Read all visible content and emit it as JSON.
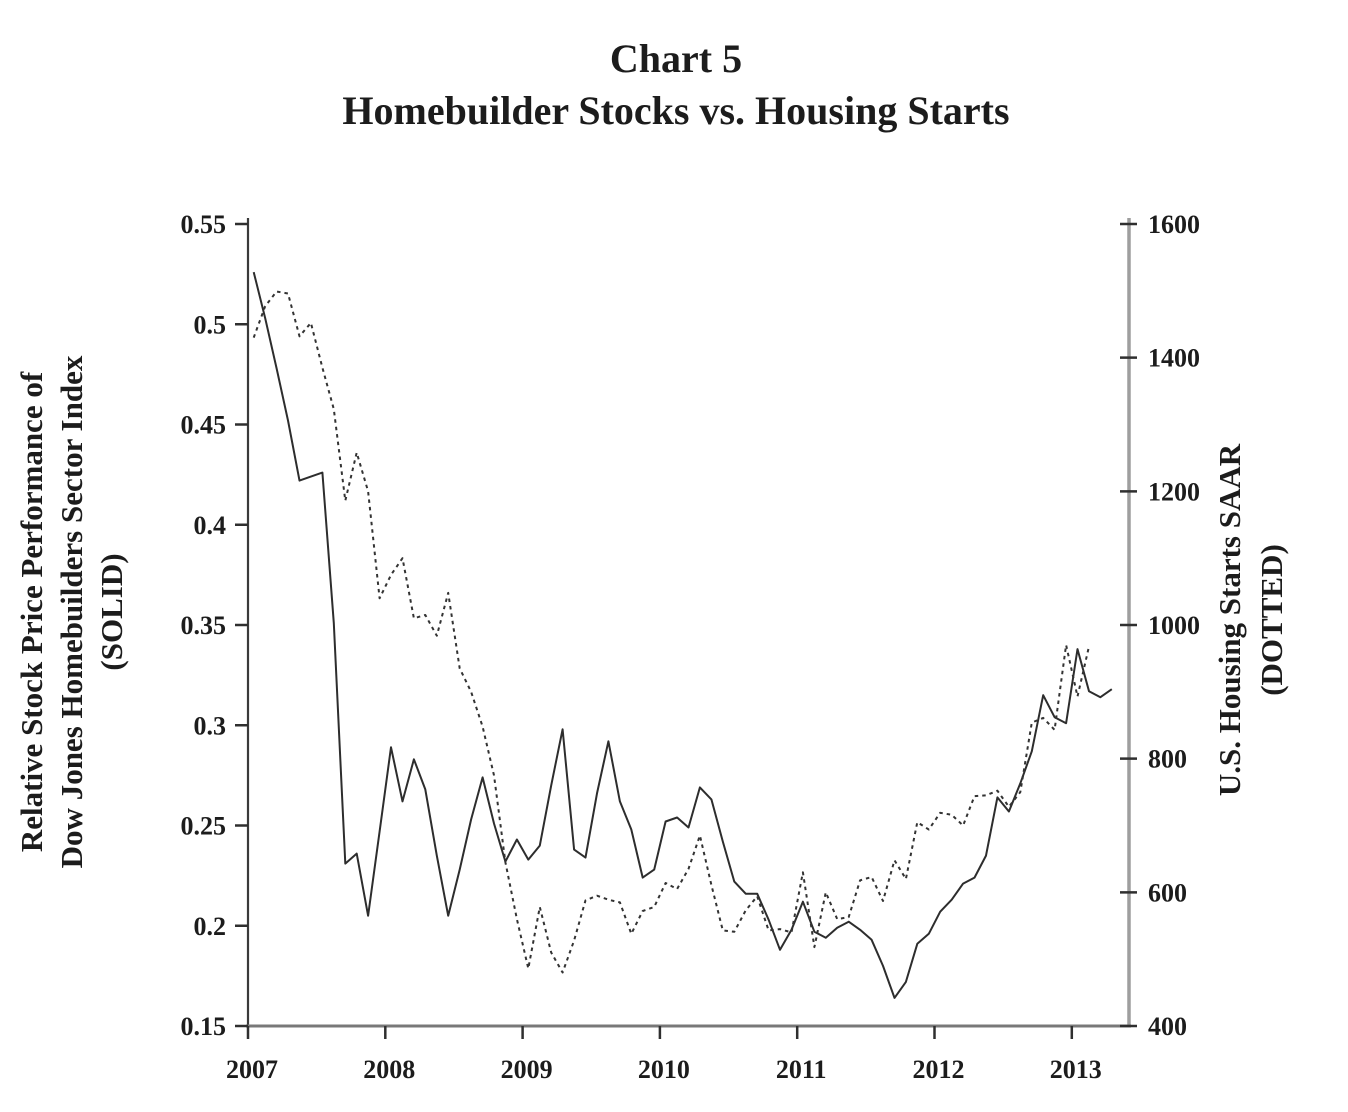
{
  "chart_data": {
    "type": "line",
    "title": "Chart 5",
    "subtitle": "Homebuilder Stocks vs. Housing Starts",
    "grid": false,
    "legend_position": "none",
    "x_axis": {
      "min": 2007,
      "max": 2013.45,
      "ticks": [
        "2007",
        "2008",
        "2009",
        "2010",
        "2011",
        "2012",
        "2013"
      ]
    },
    "left_axis": {
      "label_lines": [
        "Relative Stock Price Performance of",
        "Dow Jones Homebuilders Sector Index",
        "(SOLID)"
      ],
      "min": 0.15,
      "max": 0.55,
      "ticks": [
        "0.55",
        "0.5",
        "0.45",
        "0.4",
        "0.35",
        "0.3",
        "0.25",
        "0.2",
        "0.15"
      ]
    },
    "right_axis": {
      "label_lines": [
        "U.S. Housing Starts SAAR",
        "(DOTTED)"
      ],
      "min": 400,
      "max": 1600,
      "ticks": [
        "1600",
        "1400",
        "1200",
        "1000",
        "800",
        "600",
        "400"
      ]
    },
    "x_unit": "monthly starting January 2007, plotted at month centers",
    "series": [
      {
        "name": "Relative Stock Price Performance of Dow Jones Homebuilders Sector Index",
        "style": "solid",
        "axis": "left",
        "start": "2007-01",
        "values": [
          0.526,
          0.503,
          0.478,
          0.452,
          0.422,
          0.424,
          0.426,
          0.351,
          0.231,
          0.236,
          0.205,
          0.247,
          0.289,
          0.262,
          0.283,
          0.268,
          0.235,
          0.205,
          0.228,
          0.253,
          0.274,
          0.251,
          0.232,
          0.243,
          0.233,
          0.24,
          0.27,
          0.298,
          0.238,
          0.234,
          0.266,
          0.292,
          0.262,
          0.248,
          0.224,
          0.228,
          0.252,
          0.254,
          0.249,
          0.269,
          0.263,
          0.242,
          0.222,
          0.216,
          0.216,
          0.203,
          0.188,
          0.198,
          0.212,
          0.197,
          0.194,
          0.199,
          0.202,
          0.198,
          0.193,
          0.18,
          0.164,
          0.172,
          0.191,
          0.196,
          0.207,
          0.213,
          0.221,
          0.224,
          0.235,
          0.264,
          0.257,
          0.271,
          0.287,
          0.315,
          0.304,
          0.301,
          0.338,
          0.317,
          0.314,
          0.318
        ]
      },
      {
        "name": "U.S. Housing Starts SAAR",
        "style": "dotted",
        "axis": "right",
        "start": "2007-01",
        "values": [
          1430,
          1477,
          1499,
          1496,
          1432,
          1452,
          1385,
          1323,
          1186,
          1258,
          1200,
          1040,
          1075,
          1100,
          1010,
          1015,
          984,
          1048,
          935,
          900,
          848,
          775,
          645,
          560,
          486,
          578,
          510,
          480,
          528,
          588,
          595,
          589,
          585,
          538,
          572,
          578,
          614,
          605,
          635,
          685,
          611,
          543,
          541,
          573,
          594,
          543,
          545,
          540,
          630,
          518,
          600,
          560,
          563,
          618,
          623,
          587,
          648,
          620,
          705,
          694,
          719,
          716,
          700,
          744,
          745,
          752,
          728,
          750,
          854,
          861,
          843,
          970,
          893,
          968
        ]
      }
    ]
  }
}
